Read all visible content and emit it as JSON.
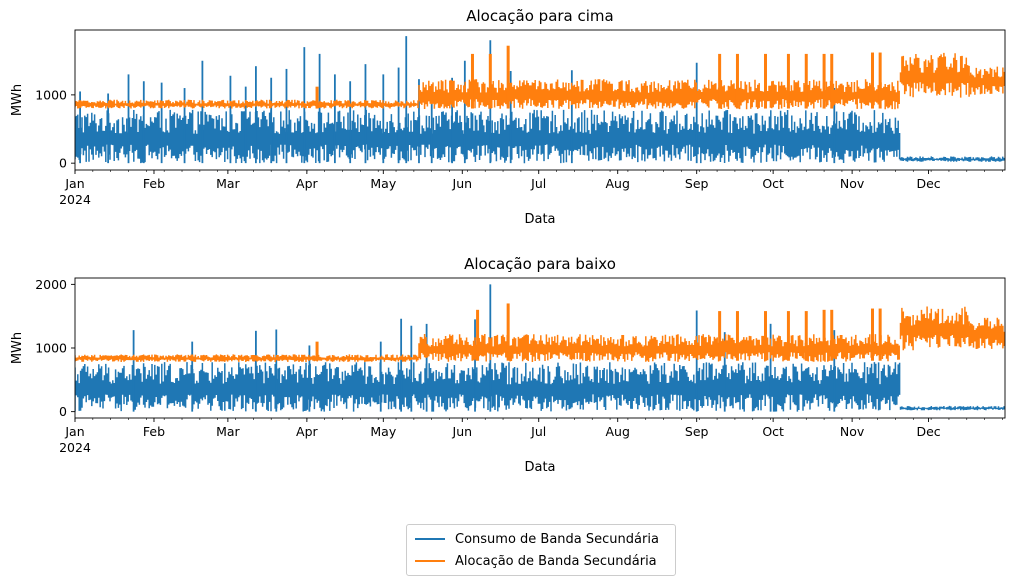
{
  "colors": {
    "consumo": "#1f77b4",
    "alocacao": "#ff7f0e"
  },
  "legend": [
    {
      "name": "Consumo de Banda Secundária",
      "color": "#1f77b4"
    },
    {
      "name": "Alocação de Banda Secundária",
      "color": "#ff7f0e"
    }
  ],
  "chart_data": [
    {
      "type": "line",
      "title": "Alocação para cima",
      "xlabel": "Data",
      "ylabel": "MWh",
      "xlim": [
        "2024-01-01",
        "2024-12-31"
      ],
      "ylim": [
        -100,
        1950
      ],
      "yticks": [
        0,
        1000
      ],
      "xticks": [
        "Jan",
        "Feb",
        "Mar",
        "Apr",
        "May",
        "Jun",
        "Jul",
        "Aug",
        "Sep",
        "Oct",
        "Nov",
        "Dec"
      ],
      "xtick_year": "2024",
      "legend_position": "bottom-center",
      "grid": false,
      "series": [
        {
          "name": "Consumo de Banda Secundária",
          "color": "#1f77b4",
          "range_segments": [
            {
              "from": "2024-01-01",
              "to": "2024-11-20",
              "low": 0,
              "high": 780
            },
            {
              "from": "2024-11-20",
              "to": "2024-12-31",
              "low": 20,
              "high": 100
            }
          ],
          "spikes": [
            [
              "2024-01-03",
              1050
            ],
            [
              "2024-01-14",
              1020
            ],
            [
              "2024-01-22",
              1300
            ],
            [
              "2024-01-28",
              1200
            ],
            [
              "2024-02-04",
              1180
            ],
            [
              "2024-02-13",
              1100
            ],
            [
              "2024-02-20",
              1500
            ],
            [
              "2024-03-02",
              1280
            ],
            [
              "2024-03-08",
              1120
            ],
            [
              "2024-03-12",
              1420
            ],
            [
              "2024-03-18",
              1250
            ],
            [
              "2024-03-24",
              1380
            ],
            [
              "2024-03-31",
              1700
            ],
            [
              "2024-04-06",
              1600
            ],
            [
              "2024-04-12",
              1300
            ],
            [
              "2024-04-18",
              1200
            ],
            [
              "2024-04-24",
              1450
            ],
            [
              "2024-05-01",
              1300
            ],
            [
              "2024-05-07",
              1400
            ],
            [
              "2024-05-10",
              1860
            ],
            [
              "2024-05-15",
              1230
            ],
            [
              "2024-05-20",
              1100
            ],
            [
              "2024-05-28",
              1250
            ],
            [
              "2024-06-02",
              1500
            ],
            [
              "2024-06-12",
              1800
            ],
            [
              "2024-06-20",
              1350
            ],
            [
              "2024-07-14",
              1360
            ],
            [
              "2024-09-01",
              1470
            ],
            [
              "2024-10-25",
              1100
            ]
          ]
        },
        {
          "name": "Alocação de Banda Secundária",
          "color": "#ff7f0e",
          "range_segments": [
            {
              "from": "2024-01-01",
              "to": "2024-05-15",
              "low": 800,
              "high": 930
            },
            {
              "from": "2024-05-15",
              "to": "2024-11-20",
              "low": 790,
              "high": 1230
            },
            {
              "from": "2024-11-20",
              "to": "2024-12-17",
              "low": 960,
              "high": 1620
            },
            {
              "from": "2024-12-17",
              "to": "2024-12-31",
              "low": 1000,
              "high": 1420
            }
          ],
          "spikes": [
            [
              "2024-04-05",
              1120
            ],
            [
              "2024-06-05",
              1600
            ],
            [
              "2024-06-12",
              1600
            ],
            [
              "2024-06-19",
              1720
            ],
            [
              "2024-09-10",
              1600
            ],
            [
              "2024-09-17",
              1600
            ],
            [
              "2024-09-28",
              1600
            ],
            [
              "2024-10-07",
              1600
            ],
            [
              "2024-10-14",
              1600
            ],
            [
              "2024-10-21",
              1600
            ],
            [
              "2024-10-24",
              1600
            ],
            [
              "2024-11-09",
              1620
            ],
            [
              "2024-11-12",
              1620
            ]
          ]
        }
      ]
    },
    {
      "type": "line",
      "title": "Alocação para baixo",
      "xlabel": "Data",
      "ylabel": "MWh",
      "xlim": [
        "2024-01-01",
        "2024-12-31"
      ],
      "ylim": [
        -100,
        2100
      ],
      "yticks": [
        0,
        1000,
        2000
      ],
      "xticks": [
        "Jan",
        "Feb",
        "Mar",
        "Apr",
        "May",
        "Jun",
        "Jul",
        "Aug",
        "Sep",
        "Oct",
        "Nov",
        "Dec"
      ],
      "xtick_year": "2024",
      "legend_position": "bottom-center",
      "grid": false,
      "series": [
        {
          "name": "Consumo de Banda Secundária",
          "color": "#1f77b4",
          "range_segments": [
            {
              "from": "2024-01-01",
              "to": "2024-11-20",
              "low": 0,
              "high": 780
            },
            {
              "from": "2024-11-20",
              "to": "2024-12-31",
              "low": 20,
              "high": 90
            }
          ],
          "spikes": [
            [
              "2024-01-24",
              1280
            ],
            [
              "2024-02-16",
              1100
            ],
            [
              "2024-03-12",
              1270
            ],
            [
              "2024-03-20",
              1290
            ],
            [
              "2024-04-02",
              1040
            ],
            [
              "2024-04-30",
              1100
            ],
            [
              "2024-05-08",
              1460
            ],
            [
              "2024-05-12",
              1350
            ],
            [
              "2024-05-18",
              1380
            ],
            [
              "2024-06-06",
              1450
            ],
            [
              "2024-06-12",
              2000
            ],
            [
              "2024-09-01",
              1590
            ],
            [
              "2024-09-12",
              1250
            ],
            [
              "2024-09-30",
              1380
            ],
            [
              "2024-10-25",
              1280
            ]
          ]
        },
        {
          "name": "Alocação de Banda Secundária",
          "color": "#ff7f0e",
          "range_segments": [
            {
              "from": "2024-01-01",
              "to": "2024-05-15",
              "low": 780,
              "high": 900
            },
            {
              "from": "2024-05-15",
              "to": "2024-11-20",
              "low": 780,
              "high": 1220
            },
            {
              "from": "2024-11-20",
              "to": "2024-12-17",
              "low": 960,
              "high": 1660
            },
            {
              "from": "2024-12-17",
              "to": "2024-12-31",
              "low": 980,
              "high": 1480
            }
          ],
          "spikes": [
            [
              "2024-04-05",
              1100
            ],
            [
              "2024-06-07",
              1600
            ],
            [
              "2024-06-19",
              1700
            ],
            [
              "2024-09-10",
              1580
            ],
            [
              "2024-09-17",
              1580
            ],
            [
              "2024-09-28",
              1580
            ],
            [
              "2024-10-07",
              1580
            ],
            [
              "2024-10-14",
              1580
            ],
            [
              "2024-10-21",
              1600
            ],
            [
              "2024-10-24",
              1600
            ],
            [
              "2024-11-09",
              1620
            ],
            [
              "2024-11-12",
              1620
            ]
          ]
        }
      ]
    }
  ]
}
